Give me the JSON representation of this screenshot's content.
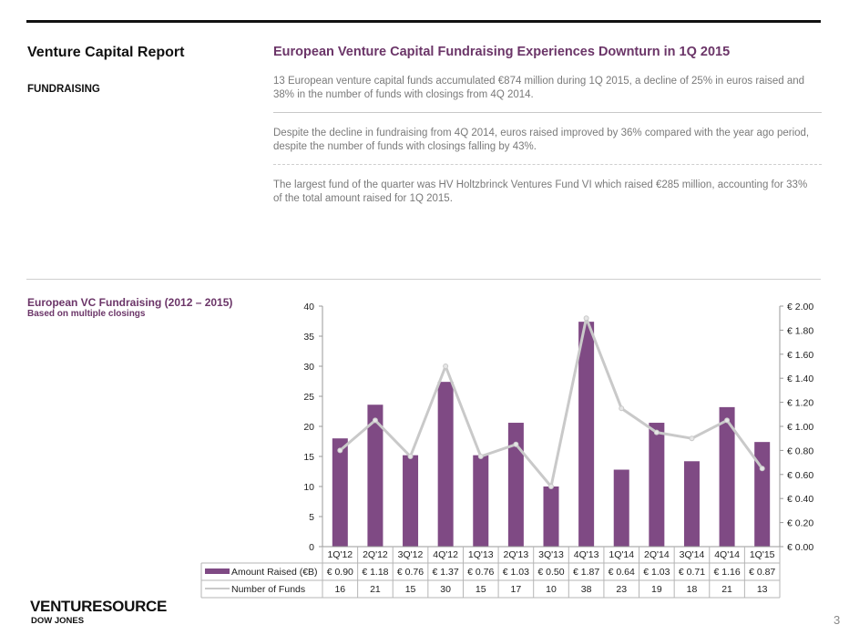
{
  "header": {
    "report_title": "Venture Capital Report",
    "section": "FUNDRAISING",
    "headline": "European Venture Capital Fundraising Experiences Downturn in 1Q 2015"
  },
  "paragraphs": [
    "13 European venture capital funds accumulated €874 million during 1Q 2015, a decline of 25% in euros raised and 38% in the number of funds with closings from 4Q 2014.",
    "Despite the decline in fundraising from 4Q 2014, euros raised improved by 36% compared with the year ago period, despite the number of funds with closings falling by 43%.",
    "The largest fund of the quarter was HV Holtzbrinck Ventures Fund VI which raised €285 million, accounting for 33% of the total amount raised for 1Q 2015."
  ],
  "chart_header": {
    "title": "European VC Fundraising  (2012 – 2015)",
    "subtitle": "Based on multiple closings"
  },
  "chart_data": {
    "type": "bar",
    "title": "European VC Fundraising  (2012 – 2015)",
    "subtitle": "Based on multiple closings",
    "categories": [
      "1Q'12",
      "2Q'12",
      "3Q'12",
      "4Q'12",
      "1Q'13",
      "2Q'13",
      "3Q'13",
      "4Q'13",
      "1Q'14",
      "2Q'14",
      "3Q'14",
      "4Q'14",
      "1Q'15"
    ],
    "series": [
      {
        "name": "Amount Raised (€B)",
        "type": "bar",
        "axis": "right",
        "color": "#7f4a84",
        "values": [
          0.9,
          1.18,
          0.76,
          1.37,
          0.76,
          1.03,
          0.5,
          1.87,
          0.64,
          1.03,
          0.71,
          1.16,
          0.87
        ],
        "labels": [
          "€ 0.90",
          "€ 1.18",
          "€ 0.76",
          "€ 1.37",
          "€ 0.76",
          "€ 1.03",
          "€ 0.50",
          "€ 1.87",
          "€ 0.64",
          "€ 1.03",
          "€ 0.71",
          "€ 1.16",
          "€ 0.87"
        ]
      },
      {
        "name": "Number of Funds",
        "type": "line",
        "axis": "left",
        "color": "#c9c9c9",
        "values": [
          16,
          21,
          15,
          30,
          15,
          17,
          10,
          38,
          23,
          19,
          18,
          21,
          13
        ]
      }
    ],
    "left_axis": {
      "range": [
        0,
        40
      ],
      "ticks": [
        "0",
        "5",
        "10",
        "15",
        "20",
        "25",
        "30",
        "35",
        "40"
      ]
    },
    "right_axis": {
      "range": [
        0,
        2.0
      ],
      "ticks": [
        "€ 0.00",
        "€ 0.20",
        "€ 0.40",
        "€ 0.60",
        "€ 0.80",
        "€ 1.00",
        "€ 1.20",
        "€ 1.40",
        "€ 1.60",
        "€ 1.80",
        "€ 2.00"
      ]
    },
    "grid": false,
    "legend": "data-table-below"
  },
  "footer": {
    "logo_main": "VENTURESOURCE",
    "logo_sub": "DOW JONES",
    "page_number": "3"
  }
}
